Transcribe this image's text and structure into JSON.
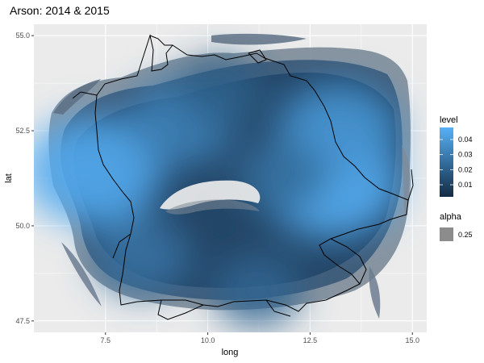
{
  "chart_data": {
    "type": "heatmap",
    "title": "Arson: 2014 & 2015",
    "xlabel": "long",
    "ylabel": "lat",
    "xlim": [
      5.75,
      15.35
    ],
    "ylim": [
      47.2,
      55.3
    ],
    "x_ticks": [
      7.5,
      10.0,
      12.5,
      15.0
    ],
    "x_tick_labels": [
      "7.5",
      "10.0",
      "12.5",
      "15.0"
    ],
    "y_ticks": [
      47.5,
      50.0,
      52.5,
      55.0
    ],
    "y_tick_labels": [
      "47.5",
      "50.0",
      "52.5",
      "55.0"
    ],
    "grid": true,
    "colors": {
      "panel_bg": "#ebebeb",
      "grid": "#ffffff",
      "low": "#132b43",
      "high": "#56b1f7",
      "alpha_swatch": "#8c8c8c",
      "border": "#000000"
    },
    "density_hotspots": [
      {
        "long": 7.2,
        "lat": 51.45,
        "level": 0.046
      },
      {
        "long": 13.0,
        "lat": 51.15,
        "level": 0.047
      },
      {
        "long": 13.2,
        "lat": 52.5,
        "level": 0.038
      },
      {
        "long": 9.3,
        "lat": 52.7,
        "level": 0.032
      },
      {
        "long": 8.4,
        "lat": 49.2,
        "level": 0.026
      },
      {
        "long": 11.2,
        "lat": 48.3,
        "level": 0.022
      },
      {
        "long": 10.3,
        "lat": 53.5,
        "level": 0.02
      },
      {
        "long": 11.8,
        "lat": 51.3,
        "level": 0.024
      }
    ],
    "legend": {
      "placement": "right",
      "level": {
        "title": "level",
        "breaks": [
          0.01,
          0.02,
          0.03,
          0.04
        ],
        "labels": [
          "0.01",
          "0.02",
          "0.03",
          "0.04"
        ],
        "range": [
          0.002,
          0.048
        ]
      },
      "alpha": {
        "title": "alpha",
        "labels": [
          "0.25"
        ]
      }
    }
  }
}
